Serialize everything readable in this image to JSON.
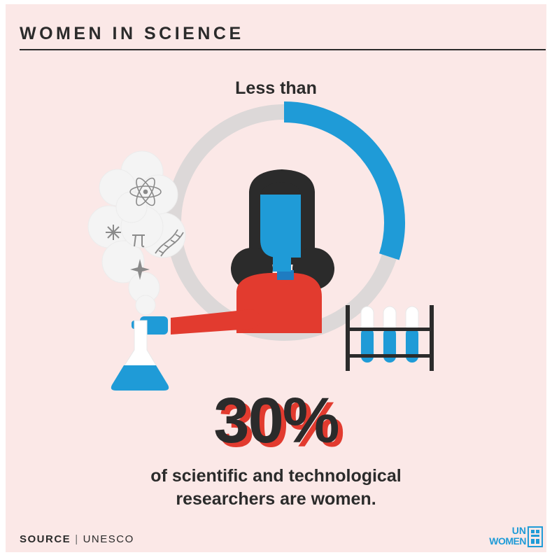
{
  "header": {
    "title": "WOMEN IN SCIENCE"
  },
  "stat": {
    "intro": "Less than",
    "value": "30%",
    "caption_line1": "of scientific and technological",
    "caption_line2": "researchers are women.",
    "fraction": 0.3
  },
  "footer": {
    "source_label": "SOURCE",
    "separator": "|",
    "source_value": "UNESCO",
    "logo_line1": "UN",
    "logo_line2": "WOMEN"
  },
  "icons": {
    "smoke_symbols": [
      "atom-icon",
      "sparkle-icon",
      "pi-icon",
      "dna-icon",
      "star-icon"
    ],
    "logo_icon": "un-women-emblem-icon"
  },
  "colors": {
    "background": "#fbe8e7",
    "text": "#2b2b2b",
    "accent_blue": "#1f9bd7",
    "accent_red": "#e23b2f",
    "ring_gray": "#dcd8d8"
  }
}
